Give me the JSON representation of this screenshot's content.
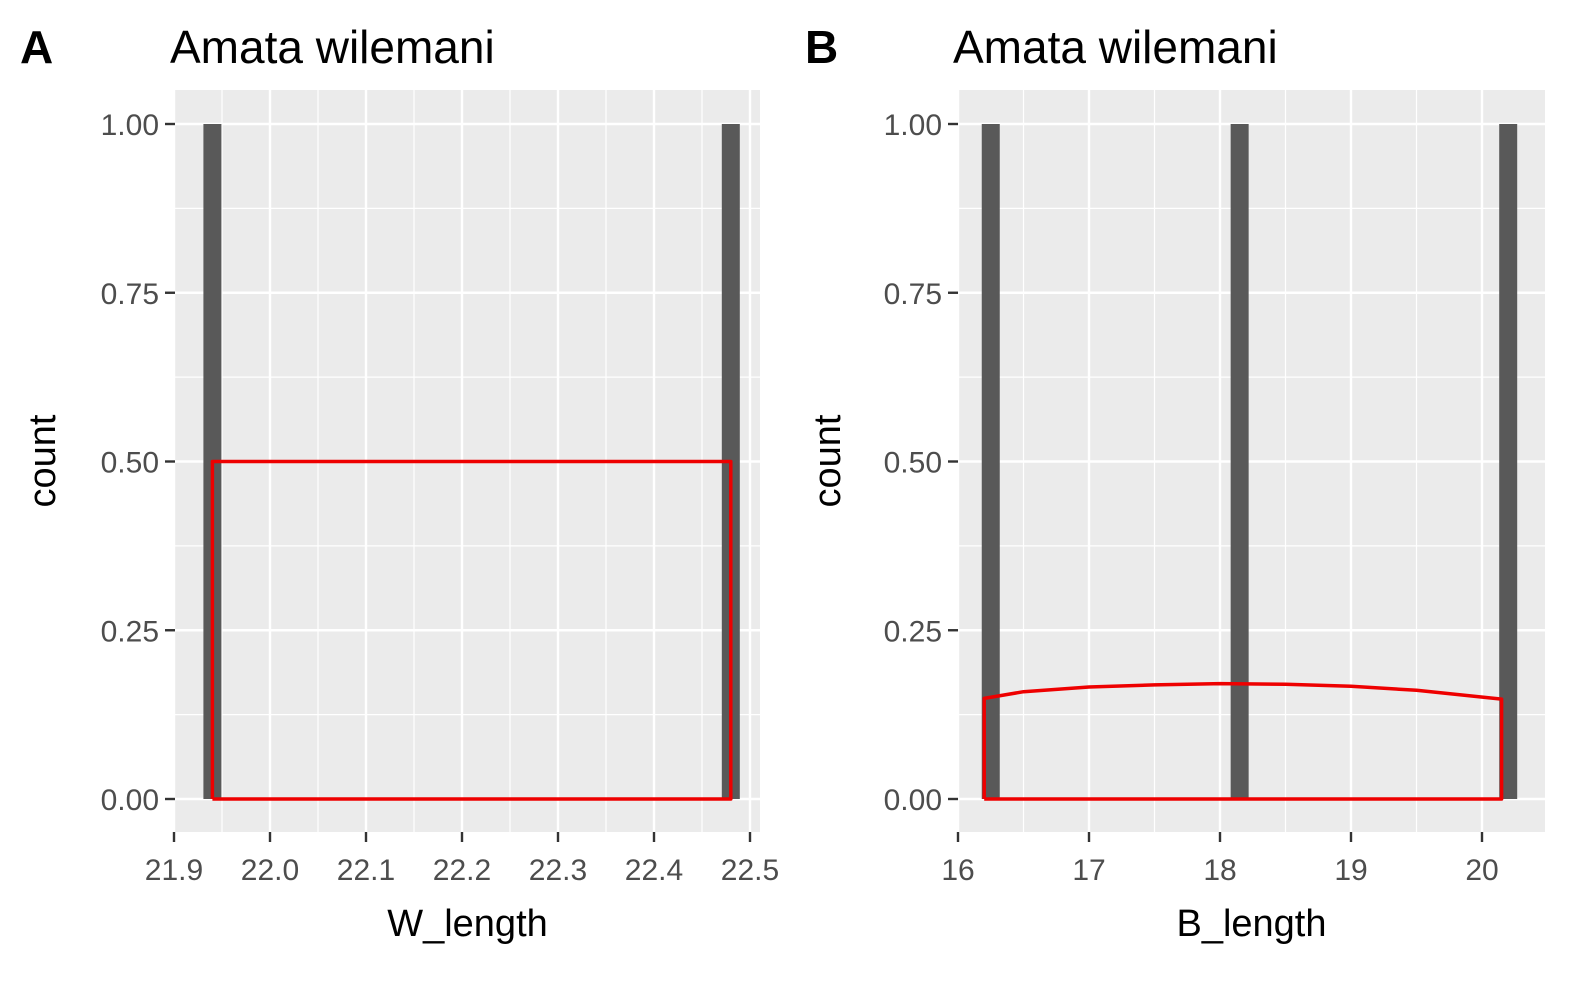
{
  "chart_data": [
    {
      "tag": "A",
      "type": "bar",
      "title": "Amata wilemani",
      "xlabel": "W_length",
      "ylabel": "count",
      "xlim": [
        21.9,
        22.5
      ],
      "ylim": [
        0,
        1
      ],
      "x_ticks": [
        "21.9",
        "22.0",
        "22.1",
        "22.2",
        "22.3",
        "22.4",
        "22.5"
      ],
      "y_ticks": [
        "0.00",
        "0.25",
        "0.50",
        "0.75",
        "1.00"
      ],
      "grid": true,
      "bars": [
        {
          "x": 21.94,
          "count": 1
        },
        {
          "x": 22.48,
          "count": 1
        }
      ],
      "density_outline": {
        "color": "#ee0000",
        "x": [
          21.94,
          21.94,
          22.48,
          22.48
        ],
        "y": [
          0,
          0.5,
          0.5,
          0
        ]
      },
      "bar_color": "#595959"
    },
    {
      "tag": "B",
      "type": "bar",
      "title": "Amata wilemani",
      "xlabel": "B_length",
      "ylabel": "count",
      "xlim": [
        16,
        20.4
      ],
      "ylim": [
        0,
        1
      ],
      "x_ticks": [
        "16",
        "17",
        "18",
        "19",
        "20"
      ],
      "y_ticks": [
        "0.00",
        "0.25",
        "0.50",
        "0.75",
        "1.00"
      ],
      "grid": true,
      "bars": [
        {
          "x": 16.25,
          "count": 1
        },
        {
          "x": 18.15,
          "count": 1
        },
        {
          "x": 20.2,
          "count": 1
        }
      ],
      "density_outline": {
        "color": "#ee0000",
        "x": [
          16.2,
          16.2,
          16.5,
          17.0,
          17.5,
          18.0,
          18.5,
          19.0,
          19.5,
          20.15,
          20.15
        ],
        "y": [
          0,
          0.149,
          0.159,
          0.166,
          0.169,
          0.171,
          0.17,
          0.167,
          0.161,
          0.148,
          0
        ]
      },
      "bar_color": "#595959"
    }
  ]
}
